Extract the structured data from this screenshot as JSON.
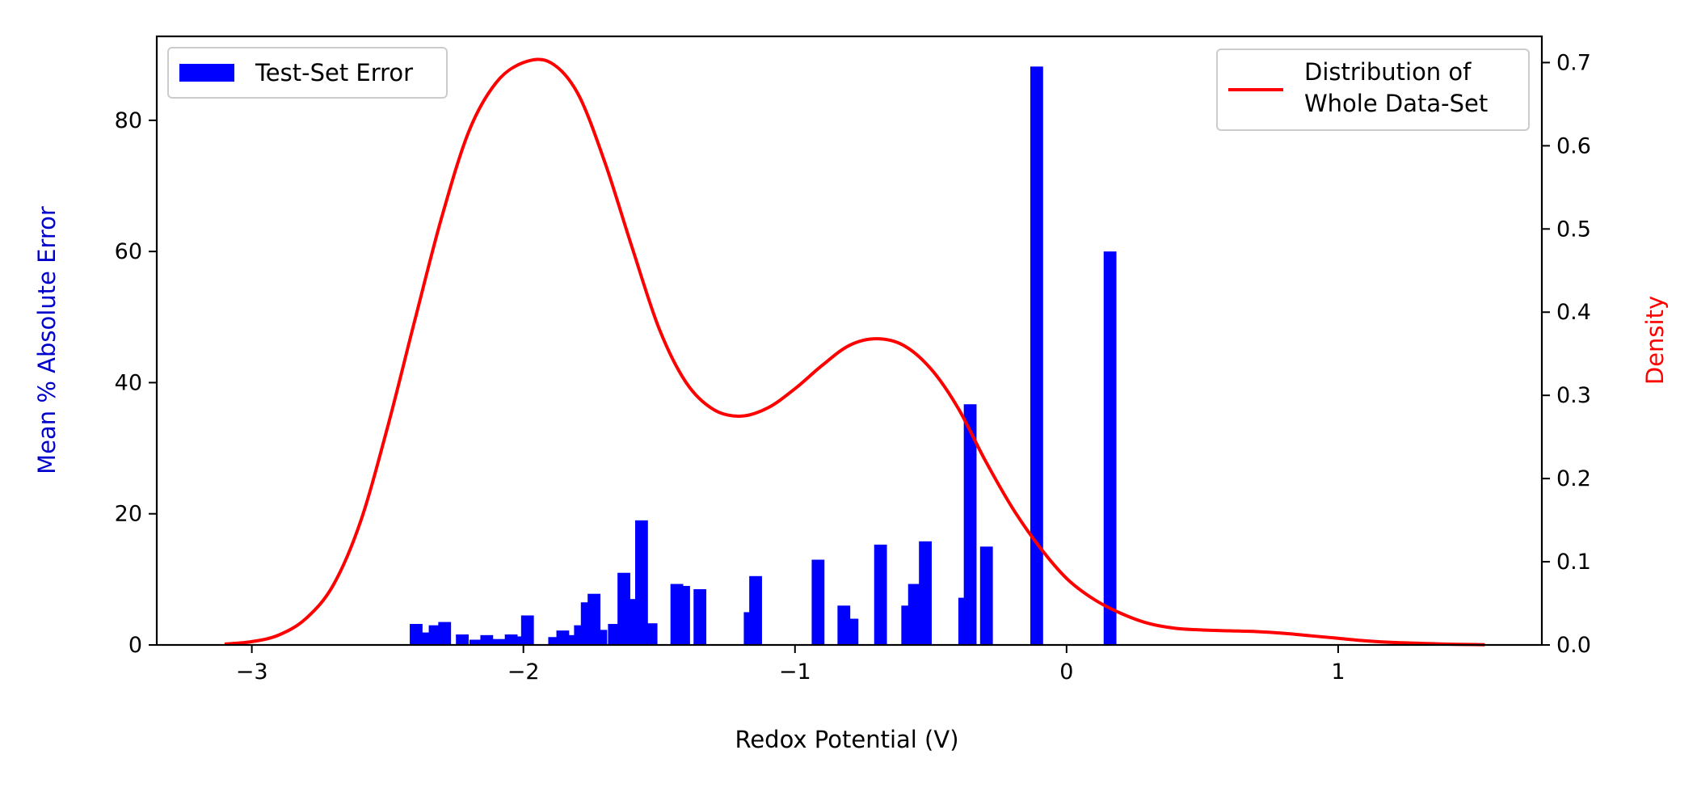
{
  "chart_data": {
    "type": "bar+line",
    "xlabel": "Redox Potential (V)",
    "ylabel_left": "Mean % Absolute Error",
    "ylabel_right": "Density",
    "xlim": [
      -3.35,
      1.75
    ],
    "ylim_left": [
      0,
      92.8
    ],
    "ylim_right": [
      0,
      0.7315
    ],
    "x_ticks": [
      -3,
      -2,
      -1,
      0,
      1
    ],
    "x_tick_labels": [
      "−3",
      "−2",
      "−1",
      "0",
      "1"
    ],
    "y_left_ticks": [
      0,
      20,
      40,
      60,
      80
    ],
    "y_left_tick_labels": [
      "0",
      "20",
      "40",
      "60",
      "80"
    ],
    "y_right_ticks": [
      0.0,
      0.1,
      0.2,
      0.3,
      0.4,
      0.5,
      0.6,
      0.7
    ],
    "y_right_tick_labels": [
      "0.0",
      "0.1",
      "0.2",
      "0.3",
      "0.4",
      "0.5",
      "0.6",
      "0.7"
    ],
    "grid": false,
    "colors": {
      "bars": "#0000ff",
      "line": "#ff0000",
      "left_axis_label": "#0000cc",
      "right_axis_label": "#ff0000"
    },
    "legend_bars": {
      "label": "Test-Set Error",
      "placement": "upper-left"
    },
    "legend_line": {
      "label_lines": [
        "Distribution of",
        "Whole Data-Set"
      ],
      "placement": "upper-right"
    },
    "bar_width": 0.047,
    "bars": [
      {
        "x": -2.395,
        "value": 3.2
      },
      {
        "x": -2.36,
        "value": 1.9
      },
      {
        "x": -2.325,
        "value": 3.0
      },
      {
        "x": -2.29,
        "value": 3.5
      },
      {
        "x": -2.225,
        "value": 1.6
      },
      {
        "x": -2.175,
        "value": 0.8
      },
      {
        "x": -2.135,
        "value": 1.5
      },
      {
        "x": -2.09,
        "value": 0.9
      },
      {
        "x": -2.045,
        "value": 1.6
      },
      {
        "x": -2.015,
        "value": 1.3
      },
      {
        "x": -1.985,
        "value": 4.5
      },
      {
        "x": -1.885,
        "value": 1.2
      },
      {
        "x": -1.855,
        "value": 2.2
      },
      {
        "x": -1.82,
        "value": 1.5
      },
      {
        "x": -1.79,
        "value": 3.0
      },
      {
        "x": -1.765,
        "value": 6.5
      },
      {
        "x": -1.74,
        "value": 7.8
      },
      {
        "x": -1.715,
        "value": 2.3
      },
      {
        "x": -1.665,
        "value": 3.2
      },
      {
        "x": -1.63,
        "value": 11.0
      },
      {
        "x": -1.6,
        "value": 7.0
      },
      {
        "x": -1.565,
        "value": 19.0
      },
      {
        "x": -1.53,
        "value": 3.3
      },
      {
        "x": -1.435,
        "value": 9.3
      },
      {
        "x": -1.41,
        "value": 9.0
      },
      {
        "x": -1.35,
        "value": 8.5
      },
      {
        "x": -1.165,
        "value": 5.0
      },
      {
        "x": -1.145,
        "value": 10.5
      },
      {
        "x": -0.915,
        "value": 13.0
      },
      {
        "x": -0.82,
        "value": 6.0
      },
      {
        "x": -0.79,
        "value": 4.0
      },
      {
        "x": -0.685,
        "value": 15.3
      },
      {
        "x": -0.585,
        "value": 6.0
      },
      {
        "x": -0.56,
        "value": 9.3
      },
      {
        "x": -0.52,
        "value": 15.8
      },
      {
        "x": -0.375,
        "value": 7.2
      },
      {
        "x": -0.355,
        "value": 36.7
      },
      {
        "x": -0.295,
        "value": 15.0
      },
      {
        "x": -0.11,
        "value": 88.2
      },
      {
        "x": 0.16,
        "value": 60.0
      }
    ],
    "kde": {
      "x": [
        -3.1,
        -3.0,
        -2.9,
        -2.8,
        -2.7,
        -2.6,
        -2.5,
        -2.4,
        -2.3,
        -2.2,
        -2.1,
        -2.0,
        -1.9,
        -1.8,
        -1.7,
        -1.6,
        -1.5,
        -1.4,
        -1.3,
        -1.2,
        -1.1,
        -1.0,
        -0.9,
        -0.8,
        -0.7,
        -0.6,
        -0.5,
        -0.4,
        -0.3,
        -0.2,
        -0.1,
        0.0,
        0.1,
        0.2,
        0.3,
        0.4,
        0.5,
        0.6,
        0.7,
        0.8,
        0.9,
        1.0,
        1.1,
        1.2,
        1.3,
        1.4,
        1.5,
        1.54
      ],
      "y": [
        0.001,
        0.004,
        0.012,
        0.032,
        0.072,
        0.148,
        0.262,
        0.39,
        0.515,
        0.618,
        0.676,
        0.7,
        0.7,
        0.663,
        0.58,
        0.478,
        0.38,
        0.315,
        0.283,
        0.275,
        0.285,
        0.308,
        0.336,
        0.36,
        0.368,
        0.36,
        0.332,
        0.285,
        0.222,
        0.165,
        0.118,
        0.08,
        0.055,
        0.038,
        0.026,
        0.02,
        0.018,
        0.017,
        0.016,
        0.014,
        0.011,
        0.008,
        0.005,
        0.003,
        0.002,
        0.001,
        0.0005,
        0.0003
      ]
    }
  }
}
